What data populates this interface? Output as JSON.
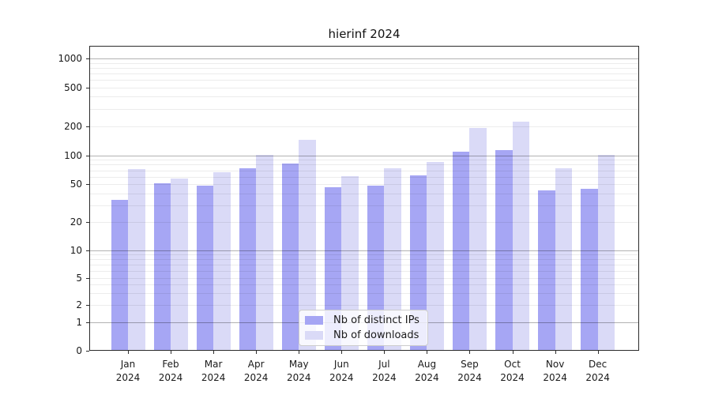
{
  "chart_data": {
    "type": "bar",
    "title": "hierinf 2024",
    "categories": [
      "Jan",
      "Feb",
      "Mar",
      "Apr",
      "May",
      "Jun",
      "Jul",
      "Aug",
      "Sep",
      "Oct",
      "Nov",
      "Dec"
    ],
    "category_year": "2024",
    "series": [
      {
        "name": "Nb of distinct IPs",
        "color": "#a6a6f4",
        "values": [
          34,
          51,
          48,
          74,
          83,
          47,
          48,
          62,
          110,
          113,
          43,
          45
        ]
      },
      {
        "name": "Nb of downloads",
        "color": "#dadaf7",
        "values": [
          72,
          57,
          67,
          102,
          145,
          61,
          74,
          85,
          190,
          222,
          74,
          101
        ]
      }
    ],
    "yticks": [
      0,
      1,
      2,
      5,
      10,
      20,
      50,
      100,
      200,
      500,
      1000
    ],
    "major_gridlines": [
      1,
      10,
      100,
      1000
    ],
    "minor_gridlines": [
      2,
      3,
      4,
      5,
      6,
      7,
      8,
      9,
      20,
      30,
      40,
      50,
      60,
      70,
      80,
      90,
      200,
      300,
      400,
      500,
      600,
      700,
      800,
      900
    ],
    "yscale": "log-like",
    "ylim": [
      0,
      1300
    ],
    "xlabel": "",
    "ylabel": "",
    "legend_position": "lower-center",
    "grid": "on",
    "axis_color": "#2b2b2b"
  }
}
